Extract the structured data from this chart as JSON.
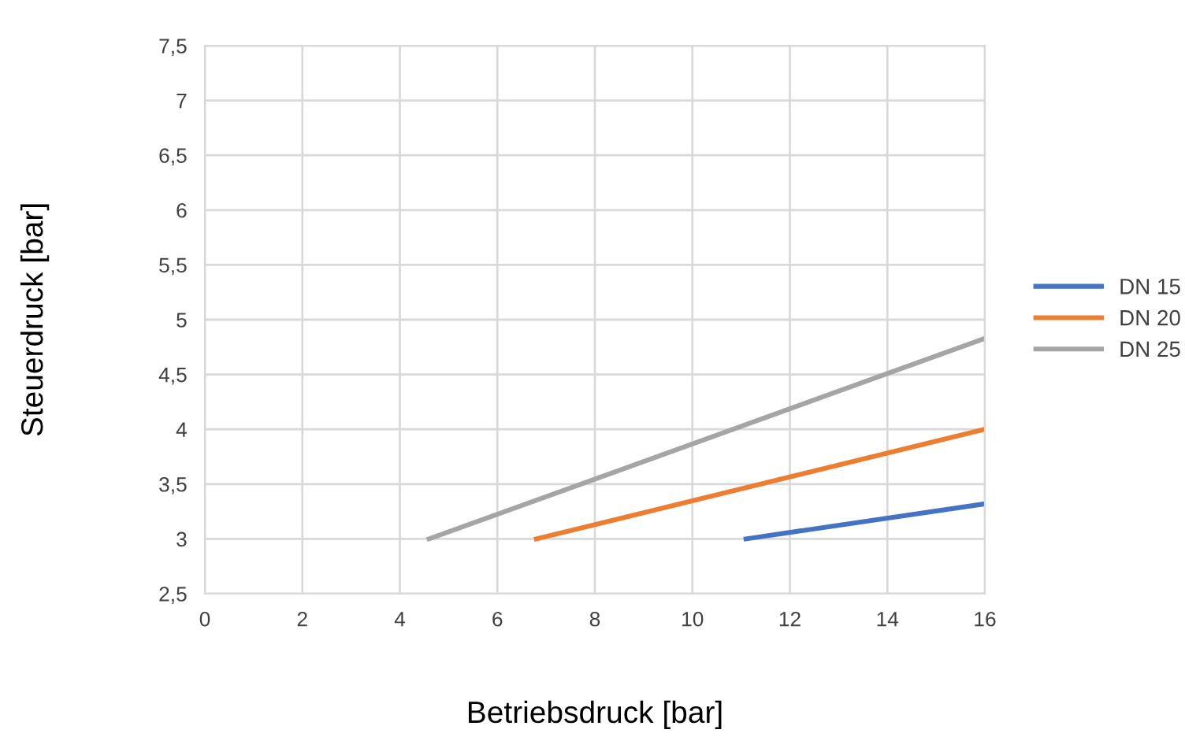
{
  "chart_data": {
    "type": "line",
    "xlabel": "Betriebsdruck [bar]",
    "ylabel": "Steuerdruck [bar]",
    "xlim": [
      0,
      16
    ],
    "xticks": [
      0,
      2,
      4,
      6,
      8,
      10,
      12,
      14,
      16
    ],
    "ylim": [
      2.5,
      7.5
    ],
    "yticks": [
      {
        "value": 2.5,
        "label": "2,5"
      },
      3,
      {
        "value": 3.5,
        "label": "3,5"
      },
      4,
      {
        "value": 4.5,
        "label": "4,5"
      },
      5,
      {
        "value": 5.5,
        "label": "5,5"
      },
      6,
      {
        "value": 6.5,
        "label": "6,5"
      },
      7,
      {
        "value": 7.5,
        "label": "7,5"
      }
    ],
    "grid": true,
    "legend": "right",
    "marker": "none",
    "line_style": "solid",
    "series": [
      {
        "name": "DN 15",
        "color": "#4472c4",
        "x": [
          11.1,
          16
        ],
        "values": [
          3.0,
          3.32
        ]
      },
      {
        "name": "DN 20",
        "color": "#ed7d31",
        "x": [
          6.8,
          16
        ],
        "values": [
          3.0,
          4.0
        ]
      },
      {
        "name": "DN 25",
        "color": "#a5a5a5",
        "x": [
          4.6,
          16
        ],
        "values": [
          3.0,
          4.83
        ]
      }
    ]
  }
}
